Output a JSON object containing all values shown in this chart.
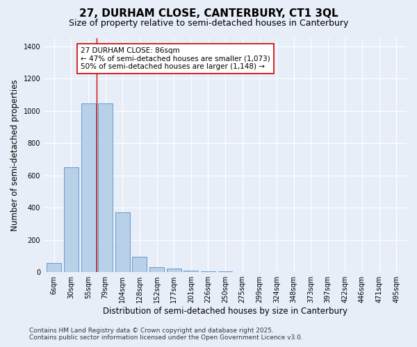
{
  "title_line1": "27, DURHAM CLOSE, CANTERBURY, CT1 3QL",
  "title_line2": "Size of property relative to semi-detached houses in Canterbury",
  "xlabel": "Distribution of semi-detached houses by size in Canterbury",
  "ylabel": "Number of semi-detached properties",
  "categories": [
    "6sqm",
    "30sqm",
    "55sqm",
    "79sqm",
    "104sqm",
    "128sqm",
    "152sqm",
    "177sqm",
    "201sqm",
    "226sqm",
    "250sqm",
    "275sqm",
    "299sqm",
    "324sqm",
    "348sqm",
    "373sqm",
    "397sqm",
    "422sqm",
    "446sqm",
    "471sqm",
    "495sqm"
  ],
  "values": [
    55,
    650,
    1045,
    1045,
    370,
    95,
    30,
    20,
    8,
    5,
    3,
    2,
    1,
    1,
    0,
    0,
    0,
    0,
    0,
    0,
    0
  ],
  "bar_color": "#b8d0e8",
  "bar_edge_color": "#6699cc",
  "red_line_x": 2.5,
  "annotation_text_line1": "27 DURHAM CLOSE: 86sqm",
  "annotation_text_line2": "← 47% of semi-detached houses are smaller (1,073)",
  "annotation_text_line3": "50% of semi-detached houses are larger (1,148) →",
  "annotation_box_color": "#ffffff",
  "annotation_box_edge_color": "#cc0000",
  "red_line_color": "#cc0000",
  "ylim": [
    0,
    1450
  ],
  "yticks": [
    0,
    200,
    400,
    600,
    800,
    1000,
    1200,
    1400
  ],
  "background_color": "#e8eef8",
  "grid_color": "#ffffff",
  "footer_line1": "Contains HM Land Registry data © Crown copyright and database right 2025.",
  "footer_line2": "Contains public sector information licensed under the Open Government Licence v3.0.",
  "title_fontsize": 11,
  "subtitle_fontsize": 9,
  "axis_label_fontsize": 8.5,
  "tick_fontsize": 7,
  "annotation_fontsize": 7.5,
  "footer_fontsize": 6.5
}
